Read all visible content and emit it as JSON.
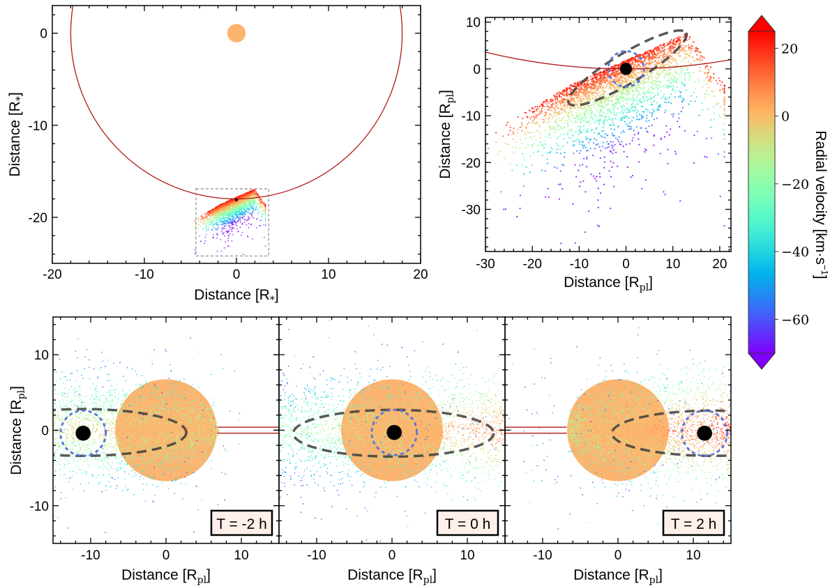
{
  "colors": {
    "star": "#fdb46f",
    "orbit": "#b01818",
    "ellipse": "#3c3c3c",
    "hill_sphere_dotted": "#5c78d8",
    "planet": "#000000",
    "annotation_box_fill": "#fdf0ea",
    "colormap": "rainbow"
  },
  "colorbar": {
    "label": "Radial velocity [km·s",
    "label_sup": "−1",
    "label_end": "]",
    "vmin": -70,
    "vmax": 25,
    "extend": "both",
    "ticks": [
      20,
      0,
      -20,
      -40,
      -60
    ],
    "tick_labels": [
      "20",
      "0",
      "−20",
      "−40",
      "−60"
    ]
  },
  "chart_data": [
    {
      "id": "top-left",
      "type": "scatter",
      "xlabel": {
        "main": "Distance [R",
        "sub": "*",
        "end": "]"
      },
      "ylabel": {
        "main": "Distance [R",
        "sub": "*",
        "end": "]"
      },
      "xlim": [
        -20,
        20
      ],
      "ylim": [
        -25,
        3
      ],
      "xticks": [
        -20,
        -10,
        0,
        10,
        20
      ],
      "xtick_labels": [
        "-20",
        "-10",
        "0",
        "10",
        "20"
      ],
      "yticks": [
        0,
        -10,
        -20
      ],
      "ytick_labels": [
        "0",
        "-10",
        "-20"
      ],
      "minor_step": 2,
      "star": {
        "x": 0,
        "y": 0,
        "r": 1
      },
      "orbit": {
        "cx": 0,
        "cy": 0,
        "r": 18
      },
      "planet": {
        "x": 0,
        "y": -18.1
      },
      "zoom_box": {
        "x": [
          -4.4,
          3.5
        ],
        "y": [
          -24.2,
          -16.9
        ]
      }
    },
    {
      "id": "top-right",
      "type": "scatter",
      "xlabel": {
        "main": "Distance [R",
        "sub": "pl",
        "end": "]"
      },
      "ylabel": {
        "main": "Distance [R",
        "sub": "pl",
        "end": "]"
      },
      "xlim": [
        -30,
        22.4
      ],
      "ylim": [
        -39,
        11
      ],
      "xticks": [
        -30,
        -20,
        -10,
        0,
        10,
        20
      ],
      "xtick_labels": [
        "-30",
        "-20",
        "-10",
        "0",
        "10",
        "20"
      ],
      "yticks": [
        10,
        0,
        -10,
        -20,
        -30
      ],
      "ytick_labels": [
        "10",
        "0",
        "-10",
        "-20",
        "-30"
      ],
      "minor_step": 2,
      "planet": {
        "x": 0,
        "y": 0,
        "r": 1.3
      },
      "hill_circle": {
        "x": 0,
        "y": 0,
        "r": 3.8
      },
      "ellipse": {
        "cx": 0.3,
        "cy": 0.2,
        "a": 14.6,
        "b": 3.2,
        "angle_deg": 31
      },
      "orbit_curve": {
        "cx": 0,
        "cy": 128,
        "r": 128
      }
    },
    {
      "id": "bottom-1",
      "type": "scatter",
      "annotation": "T = -2 h",
      "xlabel": {
        "main": "Distance [R",
        "sub": "pl",
        "end": "]"
      },
      "ylabel": {
        "main": "Distance [R",
        "sub": "pl",
        "end": "]"
      },
      "xlim": [
        -15,
        15
      ],
      "ylim": [
        -15,
        15
      ],
      "xticks": [
        -10,
        0,
        10
      ],
      "xtick_labels": [
        "-10",
        "0",
        "10"
      ],
      "yticks": [
        10,
        0,
        -10
      ],
      "ytick_labels": [
        "10",
        "0",
        "-10"
      ],
      "minor_step": 2,
      "star": {
        "x": 0,
        "y": 0,
        "r": 6.75
      },
      "planet": {
        "x": -11,
        "y": -0.4,
        "r": 1
      },
      "hill_circle": {
        "x": -11,
        "y": -0.4,
        "r": 3
      },
      "ellipse": {
        "cx": -11,
        "cy": -0.3,
        "a": 13.7,
        "b": 3.1,
        "angle_deg": 0
      },
      "orbit_lines": {
        "x": [
          6.8,
          15
        ],
        "y": [
          0.4,
          -0.4
        ]
      }
    },
    {
      "id": "bottom-2",
      "type": "scatter",
      "annotation": "T = 0 h",
      "xlabel": {
        "main": "Distance [R",
        "sub": "pl",
        "end": "]"
      },
      "xlim": [
        -15,
        15
      ],
      "ylim": [
        -15,
        15
      ],
      "xticks": [
        -10,
        0,
        10
      ],
      "xtick_labels": [
        "-10",
        "0",
        "10"
      ],
      "yticks": [
        10,
        0,
        -10
      ],
      "minor_step": 2,
      "star": {
        "x": 0,
        "y": 0,
        "r": 6.75
      },
      "planet": {
        "x": 0.3,
        "y": -0.3,
        "r": 1
      },
      "hill_circle": {
        "x": 0.3,
        "y": -0.3,
        "r": 3
      },
      "ellipse": {
        "cx": 0.2,
        "cy": -0.4,
        "a": 13.3,
        "b": 3.1,
        "angle_deg": 0
      }
    },
    {
      "id": "bottom-3",
      "type": "scatter",
      "annotation": "T = 2 h",
      "xlabel": {
        "main": "Distance [R",
        "sub": "pl",
        "end": "]"
      },
      "xlim": [
        -15,
        15
      ],
      "ylim": [
        -15,
        15
      ],
      "xticks": [
        -10,
        0,
        10
      ],
      "xtick_labels": [
        "-10",
        "0",
        "10"
      ],
      "yticks": [
        10,
        0,
        -10
      ],
      "minor_step": 2,
      "star": {
        "x": 0,
        "y": 0,
        "r": 6.75
      },
      "planet": {
        "x": 11.5,
        "y": -0.4,
        "r": 1
      },
      "hill_circle": {
        "x": 11.5,
        "y": -0.4,
        "r": 3
      },
      "ellipse": {
        "cx": 12.5,
        "cy": -0.4,
        "a": 13.3,
        "b": 3.0,
        "angle_deg": 0
      },
      "orbit_lines": {
        "x": [
          -15,
          -6.8
        ],
        "y": [
          0.4,
          -0.4
        ]
      }
    }
  ]
}
